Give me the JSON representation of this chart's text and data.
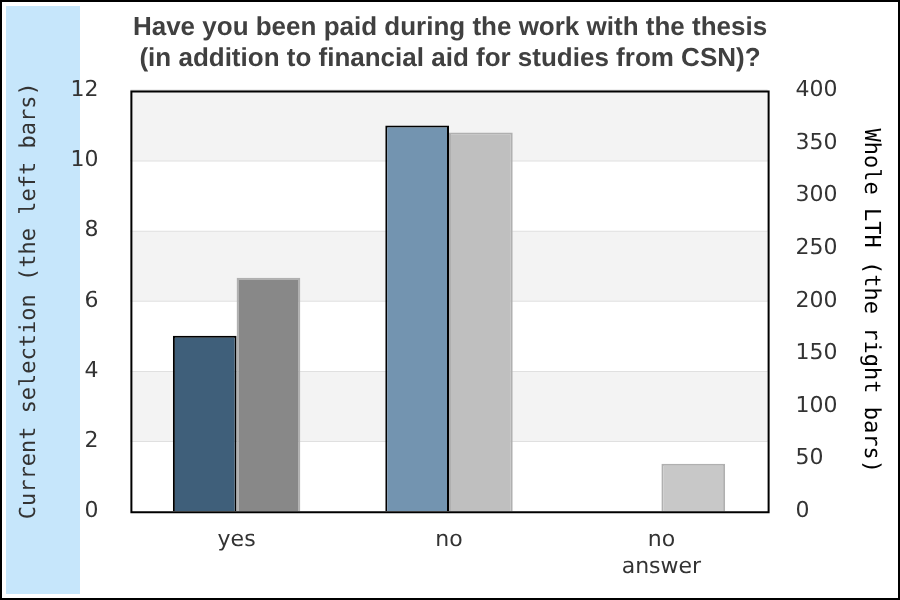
{
  "chart_data": {
    "type": "bar",
    "title": "Have you been paid during the work with the thesis\n(in addition to financial aid for studies from CSN)?",
    "ylabel": "Current selection (the left bars)",
    "y2label": "Whole LTH (the right bars)",
    "categories": [
      "yes",
      "no",
      "no answer"
    ],
    "series": [
      {
        "colors": [
          "#3f5f7a",
          "#7394b0",
          "#7394b0"
        ],
        "values": [
          5,
          11,
          0
        ],
        "axis": "y"
      },
      {
        "colors": [
          "#888888",
          "#bfbfbf",
          "#c8c8c8"
        ],
        "values": [
          222,
          360,
          45
        ],
        "axis": "y2"
      }
    ],
    "ylim": [
      0,
      12
    ],
    "yticks": [
      0,
      2,
      4,
      6,
      8,
      10,
      12
    ],
    "y2lim": [
      0,
      400
    ],
    "y2ticks": [
      0,
      50,
      100,
      150,
      200,
      250,
      300,
      350,
      400
    ],
    "grid": "y",
    "legend": false
  }
}
